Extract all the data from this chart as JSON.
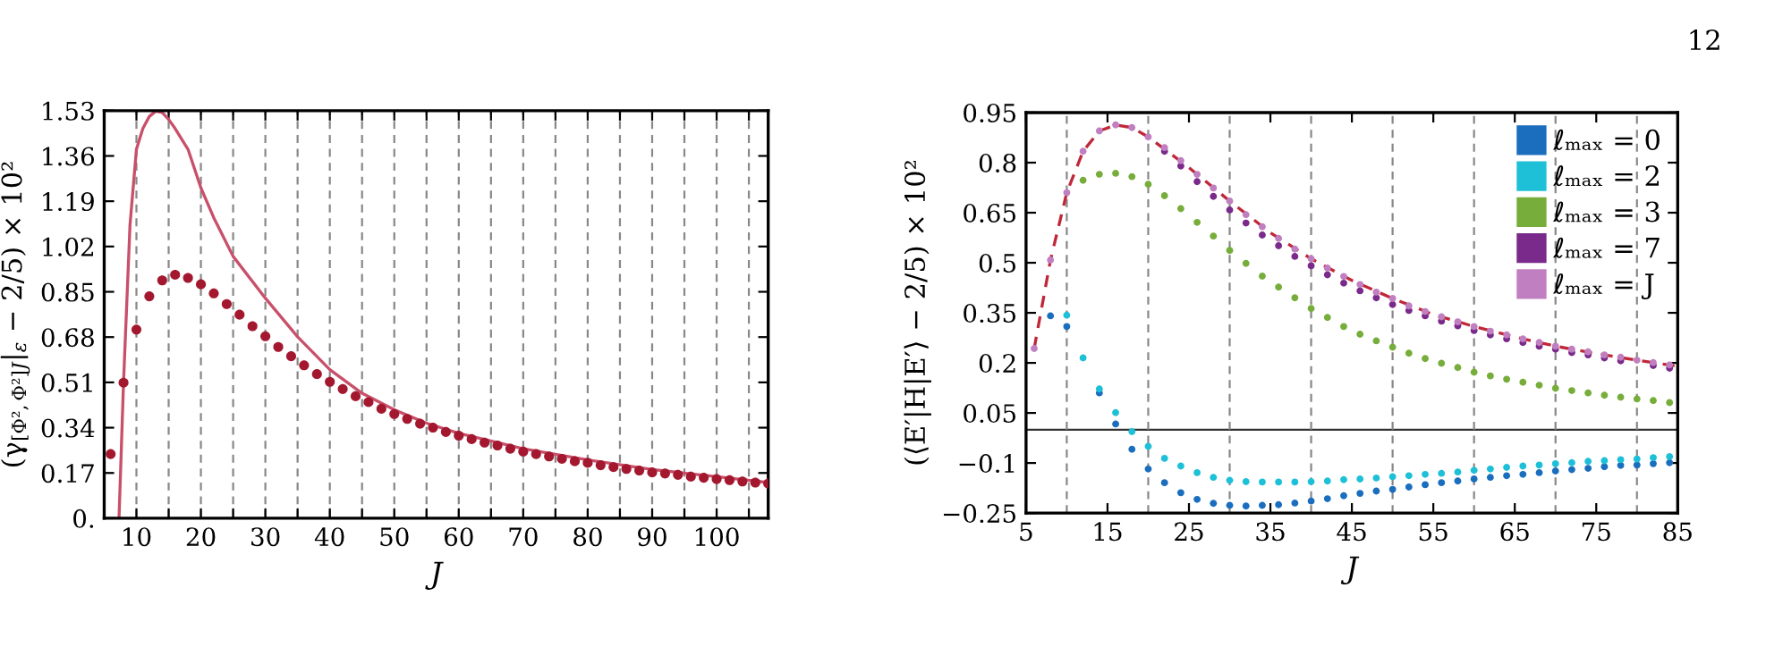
{
  "chart_data": [
    {
      "type": "scatter",
      "xlabel": "J",
      "ylabel": "(γ$_{[Φ²,Φ²]J}$|$_{ε}$ − 2/5) × 10²",
      "xlim": [
        5,
        108
      ],
      "ylim": [
        0,
        1.53
      ],
      "xticks": [
        10,
        {
          "value": 15,
          "label": null
        },
        20,
        {
          "value": 25,
          "label": null
        },
        30,
        {
          "value": 35,
          "label": null
        },
        40,
        {
          "value": 45,
          "label": null
        },
        50,
        {
          "value": 55,
          "label": null
        },
        60,
        {
          "value": 65,
          "label": null
        },
        70,
        {
          "value": 75,
          "label": null
        },
        80,
        {
          "value": 85,
          "label": null
        },
        90,
        {
          "value": 95,
          "label": null
        },
        100,
        {
          "value": 105,
          "label": null
        }
      ],
      "yticks": [
        {
          "value": 0,
          "label": "0."
        },
        0.17,
        0.34,
        0.51,
        0.68,
        0.85,
        1.02,
        1.19,
        1.36,
        1.53
      ],
      "grid": "x",
      "legend": false,
      "marker": "circle",
      "series": [
        {
          "type": "line",
          "marker": "none",
          "color": "#c8506a",
          "line_style": "solid",
          "x": [
            7.3,
            8,
            9,
            10,
            11,
            12,
            13,
            14,
            15,
            16,
            18,
            20,
            22,
            25,
            30,
            35,
            40,
            45,
            50,
            55,
            60,
            70,
            80,
            90,
            100,
            108
          ],
          "values": [
            0,
            0.51,
            1.1,
            1.385,
            1.463,
            1.508,
            1.528,
            1.523,
            1.497,
            1.463,
            1.385,
            1.24,
            1.128,
            0.983,
            0.826,
            0.681,
            0.558,
            0.469,
            0.407,
            0.357,
            0.319,
            0.261,
            0.219,
            0.183,
            0.156,
            0.134
          ]
        },
        {
          "type": "scatter",
          "color": "#a3182f",
          "x": [
            6,
            8,
            10,
            12,
            14,
            16,
            18,
            20,
            22,
            24,
            26,
            28,
            30,
            32,
            34,
            36,
            38,
            40,
            42,
            44,
            46,
            48,
            50,
            52,
            54,
            56,
            58,
            60,
            62,
            64,
            66,
            68,
            70,
            72,
            74,
            76,
            78,
            80,
            82,
            84,
            86,
            88,
            90,
            92,
            94,
            96,
            98,
            100,
            102,
            104,
            106,
            108
          ],
          "values": [
            0.241,
            0.509,
            0.708,
            0.833,
            0.893,
            0.914,
            0.902,
            0.878,
            0.844,
            0.804,
            0.764,
            0.721,
            0.683,
            0.643,
            0.608,
            0.574,
            0.541,
            0.512,
            0.485,
            0.458,
            0.436,
            0.411,
            0.391,
            0.373,
            0.355,
            0.34,
            0.324,
            0.31,
            0.297,
            0.284,
            0.273,
            0.261,
            0.25,
            0.241,
            0.232,
            0.223,
            0.214,
            0.208,
            0.199,
            0.192,
            0.185,
            0.179,
            0.172,
            0.168,
            0.163,
            0.156,
            0.152,
            0.147,
            0.143,
            0.138,
            0.134,
            0.13
          ]
        }
      ]
    },
    {
      "type": "scatter",
      "xlabel": "J",
      "ylabel": "(⟨E′|H|E′⟩ − 2/5) × 10²",
      "xlim": [
        5,
        85
      ],
      "ylim": [
        -0.25,
        0.95
      ],
      "xticks": [
        5,
        15,
        25,
        35,
        45,
        55,
        65,
        75,
        85
      ],
      "yticks": [
        {
          "value": -0.25,
          "label": "−0.25"
        },
        {
          "value": -0.1,
          "label": "−0.1"
        },
        0.05,
        0.2,
        0.35,
        0.5,
        0.65,
        0.8,
        0.95
      ],
      "legend": "top right",
      "marker": "circle",
      "annotations": [
        "12"
      ],
      "ref_lines": [
        {
          "axis": "y",
          "value": 0,
          "label": null,
          "color": "#333333",
          "line_style": "solid"
        },
        {
          "axis": "x",
          "value": 10,
          "label": null,
          "color": "#888888",
          "line_style": "dashed"
        },
        {
          "axis": "x",
          "value": 20,
          "label": null,
          "color": "#888888",
          "line_style": "dashed"
        },
        {
          "axis": "x",
          "value": 30,
          "label": null,
          "color": "#888888",
          "line_style": "dashed"
        },
        {
          "axis": "x",
          "value": 40,
          "label": null,
          "color": "#888888",
          "line_style": "dashed"
        },
        {
          "axis": "x",
          "value": 50,
          "label": null,
          "color": "#888888",
          "line_style": "dashed"
        },
        {
          "axis": "x",
          "value": 60,
          "label": null,
          "color": "#888888",
          "line_style": "dashed"
        },
        {
          "axis": "x",
          "value": 70,
          "label": null,
          "color": "#888888",
          "line_style": "dashed"
        },
        {
          "axis": "x",
          "value": 80,
          "label": null,
          "color": "#888888",
          "line_style": "dashed"
        }
      ],
      "series": [
        {
          "type": "line",
          "marker": "none",
          "color": "#c0283a",
          "line_style": "dashed",
          "x": [
            6,
            8,
            10,
            12,
            14,
            16,
            18,
            20,
            25,
            30,
            35,
            40,
            45,
            50,
            55,
            60,
            65,
            70,
            75,
            80,
            85
          ],
          "values": [
            0.243,
            0.508,
            0.71,
            0.834,
            0.895,
            0.913,
            0.905,
            0.877,
            0.785,
            0.685,
            0.59,
            0.512,
            0.447,
            0.393,
            0.345,
            0.309,
            0.278,
            0.25,
            0.228,
            0.208,
            0.19
          ]
        },
        {
          "name": "ℓₘₐₓ = 0",
          "color": "#1a6ebd",
          "x": [
            8,
            10,
            12,
            14,
            16,
            18,
            20,
            22,
            24,
            26,
            28,
            30,
            32,
            34,
            36,
            38,
            40,
            42,
            44,
            46,
            48,
            50,
            52,
            54,
            56,
            58,
            60,
            62,
            64,
            66,
            68,
            70,
            72,
            74,
            76,
            78,
            80,
            82,
            84
          ],
          "values": [
            0.341,
            0.309,
            null,
            0.11,
            0.017,
            -0.059,
            -0.118,
            -0.159,
            -0.189,
            -0.209,
            -0.221,
            -0.227,
            -0.229,
            -0.227,
            -0.225,
            -0.22,
            -0.214,
            -0.207,
            -0.198,
            -0.191,
            -0.184,
            -0.179,
            -0.172,
            -0.165,
            -0.159,
            -0.154,
            -0.148,
            -0.143,
            -0.138,
            -0.134,
            -0.129,
            -0.124,
            -0.12,
            -0.116,
            -0.111,
            -0.107,
            -0.106,
            -0.102,
            -0.099
          ]
        },
        {
          "name": "ℓₘₐₓ = 2",
          "color": "#1ec0d8",
          "x": [
            10,
            12,
            14,
            16,
            18,
            20,
            22,
            24,
            26,
            28,
            30,
            32,
            34,
            36,
            38,
            40,
            42,
            44,
            46,
            48,
            50,
            52,
            54,
            56,
            58,
            60,
            62,
            64,
            66,
            68,
            70,
            72,
            74,
            76,
            78,
            80,
            82,
            84
          ],
          "values": [
            0.343,
            0.215,
            0.122,
            0.051,
            -0.006,
            -0.05,
            -0.086,
            -0.109,
            -0.129,
            -0.143,
            -0.152,
            -0.156,
            -0.157,
            -0.157,
            -0.157,
            -0.156,
            -0.154,
            -0.15,
            -0.148,
            -0.145,
            -0.141,
            -0.138,
            -0.134,
            -0.131,
            -0.127,
            -0.122,
            -0.118,
            -0.113,
            -0.109,
            -0.106,
            -0.102,
            -0.099,
            -0.095,
            -0.093,
            -0.09,
            -0.088,
            -0.084,
            -0.081
          ]
        },
        {
          "name": "ℓₘₐₓ = 3",
          "color": "#77ad3a",
          "x": [
            12,
            14,
            16,
            18,
            20,
            22,
            24,
            26,
            28,
            30,
            32,
            34,
            36,
            38,
            40,
            42,
            44,
            46,
            48,
            50,
            52,
            54,
            56,
            58,
            60,
            62,
            64,
            66,
            68,
            70,
            72,
            74,
            76,
            78,
            80,
            82,
            84
          ],
          "values": [
            0.747,
            0.765,
            0.768,
            0.758,
            0.735,
            0.701,
            0.662,
            0.621,
            0.58,
            0.537,
            0.498,
            0.46,
            0.427,
            0.395,
            0.363,
            0.336,
            0.309,
            0.286,
            0.266,
            0.247,
            0.229,
            0.213,
            0.199,
            0.186,
            0.172,
            0.161,
            0.151,
            0.142,
            0.133,
            0.124,
            0.117,
            0.11,
            0.103,
            0.097,
            0.092,
            0.087,
            0.081
          ]
        },
        {
          "name": "ℓₘₐₓ = 7",
          "color": "#7a2a8a",
          "x": [
            22,
            24,
            26,
            28,
            30,
            32,
            34,
            36,
            38,
            40,
            42,
            44,
            46,
            48,
            50,
            52,
            54,
            56,
            58,
            60,
            62,
            64,
            66,
            68,
            70,
            72,
            74,
            76,
            78,
            80,
            82,
            84
          ],
          "values": [
            0.834,
            0.79,
            0.743,
            0.699,
            0.658,
            0.619,
            0.583,
            0.551,
            0.519,
            0.491,
            0.464,
            0.439,
            0.416,
            0.395,
            0.375,
            0.357,
            0.341,
            0.325,
            0.311,
            0.297,
            0.284,
            0.272,
            0.261,
            0.25,
            0.241,
            0.231,
            0.224,
            0.215,
            0.206,
            null,
            0.192,
            0.184
          ]
        },
        {
          "name": "ℓₘₐₓ = J",
          "color": "#c07fc0",
          "x": [
            6,
            8,
            10,
            12,
            14,
            16,
            18,
            20,
            22,
            24,
            26,
            28,
            30,
            32,
            34,
            36,
            38,
            40,
            42,
            44,
            46,
            48,
            50,
            52,
            54,
            56,
            58,
            60,
            62,
            64,
            66,
            68,
            70,
            72,
            74,
            76,
            78,
            80,
            82,
            84
          ],
          "values": [
            0.243,
            0.508,
            0.71,
            0.834,
            0.895,
            0.913,
            0.905,
            0.877,
            0.845,
            0.806,
            0.765,
            0.724,
            0.685,
            0.644,
            0.608,
            0.573,
            0.541,
            0.512,
            0.484,
            0.459,
            0.435,
            0.412,
            0.393,
            0.371,
            0.354,
            0.338,
            0.323,
            0.309,
            0.295,
            0.284,
            0.272,
            0.261,
            0.25,
            0.241,
            0.233,
            0.224,
            0.217,
            0.208,
            0.201,
            0.194
          ]
        }
      ]
    }
  ]
}
